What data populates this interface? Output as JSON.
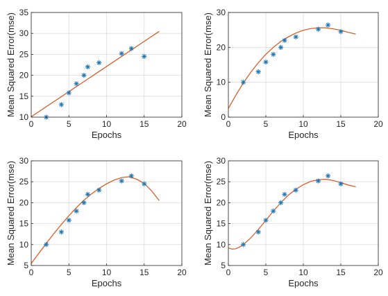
{
  "colors": {
    "marker": "#1f77b4",
    "fit_line": "#d95319",
    "axis": "#262626",
    "grid": "#dcdcdc"
  },
  "chart_data": [
    {
      "type": "scatter",
      "xlabel": "Epochs",
      "ylabel": "Mean Squared Error(mse)",
      "xlim": [
        0,
        20
      ],
      "ylim": [
        10,
        35
      ],
      "xticks": [
        0,
        5,
        10,
        15,
        20
      ],
      "yticks": [
        10,
        15,
        20,
        25,
        30,
        35
      ],
      "grid": true,
      "points": [
        {
          "x": 2,
          "y": 10
        },
        {
          "x": 4,
          "y": 13
        },
        {
          "x": 5,
          "y": 15.8
        },
        {
          "x": 6,
          "y": 18
        },
        {
          "x": 7,
          "y": 20
        },
        {
          "x": 7.5,
          "y": 22
        },
        {
          "x": 9,
          "y": 23
        },
        {
          "x": 12,
          "y": 25.2
        },
        {
          "x": 13.3,
          "y": 26.4
        },
        {
          "x": 15,
          "y": 24.5
        }
      ],
      "fit": {
        "degree": 1,
        "curve": [
          {
            "x": 0,
            "y": 10.1
          },
          {
            "x": 17,
            "y": 30.5
          }
        ]
      }
    },
    {
      "type": "scatter",
      "xlabel": "Epochs",
      "ylabel": "Mean Squared Error(mse)",
      "xlim": [
        0,
        20
      ],
      "ylim": [
        0,
        30
      ],
      "xticks": [
        0,
        5,
        10,
        15,
        20
      ],
      "yticks": [
        0,
        10,
        20,
        30
      ],
      "grid": true,
      "points": [
        {
          "x": 2,
          "y": 10
        },
        {
          "x": 4,
          "y": 13
        },
        {
          "x": 5,
          "y": 15.8
        },
        {
          "x": 6,
          "y": 18
        },
        {
          "x": 7,
          "y": 20
        },
        {
          "x": 7.5,
          "y": 22
        },
        {
          "x": 9,
          "y": 23
        },
        {
          "x": 12,
          "y": 25.2
        },
        {
          "x": 13.3,
          "y": 26.4
        },
        {
          "x": 15,
          "y": 24.5
        }
      ],
      "fit": {
        "degree": 2,
        "curve": [
          {
            "x": 0,
            "y": 2.5
          },
          {
            "x": 1,
            "y": 6.3
          },
          {
            "x": 2,
            "y": 9.8
          },
          {
            "x": 3,
            "y": 12.9
          },
          {
            "x": 4,
            "y": 15.6
          },
          {
            "x": 5,
            "y": 18.0
          },
          {
            "x": 6,
            "y": 20.0
          },
          {
            "x": 7,
            "y": 21.7
          },
          {
            "x": 8,
            "y": 23.0
          },
          {
            "x": 9,
            "y": 24.1
          },
          {
            "x": 10,
            "y": 24.9
          },
          {
            "x": 11,
            "y": 25.4
          },
          {
            "x": 12,
            "y": 25.6
          },
          {
            "x": 13,
            "y": 25.6
          },
          {
            "x": 14,
            "y": 25.3
          },
          {
            "x": 15,
            "y": 24.9
          },
          {
            "x": 16,
            "y": 24.3
          },
          {
            "x": 17,
            "y": 23.8
          }
        ]
      }
    },
    {
      "type": "scatter",
      "xlabel": "Epochs",
      "ylabel": "Mean Squared Error(mse)",
      "xlim": [
        0,
        20
      ],
      "ylim": [
        5,
        30
      ],
      "xticks": [
        0,
        5,
        10,
        15,
        20
      ],
      "yticks": [
        5,
        10,
        15,
        20,
        25,
        30
      ],
      "grid": true,
      "points": [
        {
          "x": 2,
          "y": 10
        },
        {
          "x": 4,
          "y": 13
        },
        {
          "x": 5,
          "y": 15.8
        },
        {
          "x": 6,
          "y": 18
        },
        {
          "x": 7,
          "y": 20
        },
        {
          "x": 7.5,
          "y": 22
        },
        {
          "x": 9,
          "y": 23
        },
        {
          "x": 12,
          "y": 25.2
        },
        {
          "x": 13.3,
          "y": 26.4
        },
        {
          "x": 15,
          "y": 24.5
        }
      ],
      "fit": {
        "degree": 3,
        "curve": [
          {
            "x": 0,
            "y": 5.5
          },
          {
            "x": 1,
            "y": 7.9
          },
          {
            "x": 2,
            "y": 10.3
          },
          {
            "x": 3,
            "y": 12.6
          },
          {
            "x": 4,
            "y": 14.8
          },
          {
            "x": 5,
            "y": 16.9
          },
          {
            "x": 6,
            "y": 18.8
          },
          {
            "x": 7,
            "y": 20.6
          },
          {
            "x": 8,
            "y": 22.1
          },
          {
            "x": 9,
            "y": 23.4
          },
          {
            "x": 10,
            "y": 24.5
          },
          {
            "x": 11,
            "y": 25.4
          },
          {
            "x": 12,
            "y": 26.0
          },
          {
            "x": 13,
            "y": 26.2
          },
          {
            "x": 14,
            "y": 25.6
          },
          {
            "x": 15,
            "y": 24.6
          },
          {
            "x": 16,
            "y": 22.8
          },
          {
            "x": 17,
            "y": 20.5
          }
        ]
      }
    },
    {
      "type": "scatter",
      "xlabel": "Epochs",
      "ylabel": "Mean Squared Error(mse)",
      "xlim": [
        0,
        20
      ],
      "ylim": [
        5,
        30
      ],
      "xticks": [
        0,
        5,
        10,
        15,
        20
      ],
      "yticks": [
        5,
        10,
        15,
        20,
        25,
        30
      ],
      "grid": true,
      "points": [
        {
          "x": 2,
          "y": 10
        },
        {
          "x": 4,
          "y": 13
        },
        {
          "x": 5,
          "y": 15.8
        },
        {
          "x": 6,
          "y": 18
        },
        {
          "x": 7,
          "y": 20
        },
        {
          "x": 7.5,
          "y": 22
        },
        {
          "x": 9,
          "y": 23
        },
        {
          "x": 12,
          "y": 25.2
        },
        {
          "x": 13.3,
          "y": 26.4
        },
        {
          "x": 15,
          "y": 24.5
        }
      ],
      "fit": {
        "degree": 4,
        "curve": [
          {
            "x": 0,
            "y": 9.2
          },
          {
            "x": 0.5,
            "y": 8.9
          },
          {
            "x": 1,
            "y": 9.0
          },
          {
            "x": 1.5,
            "y": 9.4
          },
          {
            "x": 2,
            "y": 10.0
          },
          {
            "x": 3,
            "y": 11.6
          },
          {
            "x": 4,
            "y": 13.6
          },
          {
            "x": 5,
            "y": 15.8
          },
          {
            "x": 6,
            "y": 18.0
          },
          {
            "x": 7,
            "y": 20.0
          },
          {
            "x": 8,
            "y": 21.8
          },
          {
            "x": 9,
            "y": 23.2
          },
          {
            "x": 10,
            "y": 24.3
          },
          {
            "x": 11,
            "y": 25.1
          },
          {
            "x": 12,
            "y": 25.5
          },
          {
            "x": 13,
            "y": 25.6
          },
          {
            "x": 14,
            "y": 25.3
          },
          {
            "x": 15,
            "y": 24.8
          },
          {
            "x": 16,
            "y": 24.2
          },
          {
            "x": 17,
            "y": 23.8
          }
        ]
      }
    }
  ]
}
